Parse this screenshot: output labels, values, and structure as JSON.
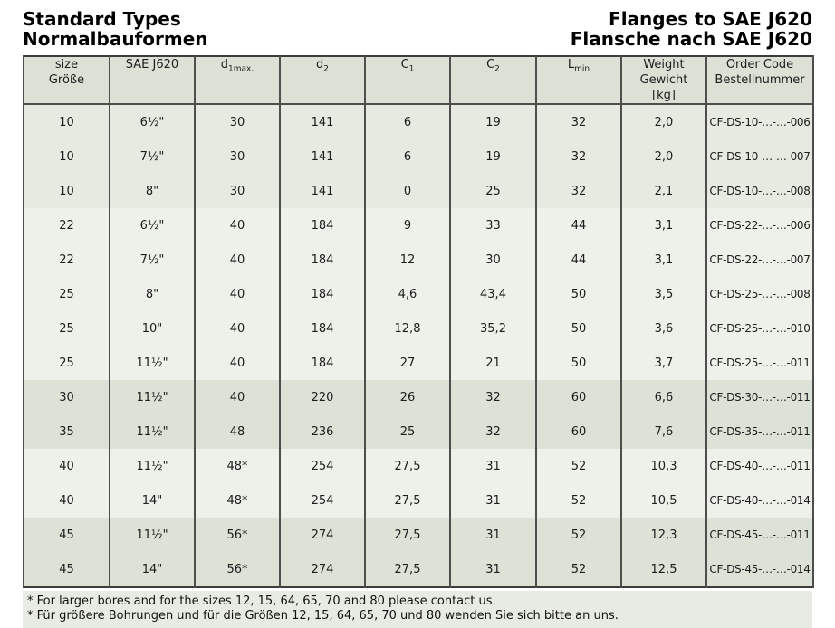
{
  "colors": {
    "header_bg": "#dce0d5",
    "row_shade_medium": "#e6eae1",
    "row_shade_light": "#eef1ea",
    "row_shade_dark": "#dde2d7",
    "footnote_bg": "#e8ebe3",
    "border_outer": "#3c3c3c",
    "border_inner": "#4e4e4e",
    "text": "#1c1c1c"
  },
  "header": {
    "left": [
      "Standard Types",
      "Normalbauformen"
    ],
    "right": [
      "Flanges to SAE J620",
      "Flansche nach SAE J620"
    ]
  },
  "table": {
    "columns": [
      {
        "key": "size",
        "lines": [
          "size",
          "Größe"
        ]
      },
      {
        "key": "sae",
        "lines": [
          "SAE J620"
        ]
      },
      {
        "key": "d1max",
        "base": "d",
        "sub": "1max."
      },
      {
        "key": "d2",
        "base": "d",
        "sub": "2"
      },
      {
        "key": "c1",
        "base": "C",
        "sub": "1"
      },
      {
        "key": "c2",
        "base": "C",
        "sub": "2"
      },
      {
        "key": "lmin",
        "base": "L",
        "sub": "min"
      },
      {
        "key": "weight",
        "lines": [
          "Weight",
          "Gewicht",
          "[kg]"
        ]
      },
      {
        "key": "order",
        "lines": [
          "Order Code",
          "Bestellnummer"
        ]
      }
    ],
    "rows": [
      {
        "size": "10",
        "sae": "6½\"",
        "d1max": "30",
        "d2": "141",
        "c1": "6",
        "c2": "19",
        "lmin": "32",
        "weight": "2,0",
        "order": "CF-DS-10-…-…-006",
        "shade": "m"
      },
      {
        "size": "10",
        "sae": "7½\"",
        "d1max": "30",
        "d2": "141",
        "c1": "6",
        "c2": "19",
        "lmin": "32",
        "weight": "2,0",
        "order": "CF-DS-10-…-…-007",
        "shade": "m"
      },
      {
        "size": "10",
        "sae": "8\"",
        "d1max": "30",
        "d2": "141",
        "c1": "0",
        "c2": "25",
        "lmin": "32",
        "weight": "2,1",
        "order": "CF-DS-10-…-…-008",
        "shade": "m"
      },
      {
        "size": "22",
        "sae": "6½\"",
        "d1max": "40",
        "d2": "184",
        "c1": "9",
        "c2": "33",
        "lmin": "44",
        "weight": "3,1",
        "order": "CF-DS-22-…-…-006",
        "shade": "l"
      },
      {
        "size": "22",
        "sae": "7½\"",
        "d1max": "40",
        "d2": "184",
        "c1": "12",
        "c2": "30",
        "lmin": "44",
        "weight": "3,1",
        "order": "CF-DS-22-…-…-007",
        "shade": "l"
      },
      {
        "size": "25",
        "sae": "8\"",
        "d1max": "40",
        "d2": "184",
        "c1": "4,6",
        "c2": "43,4",
        "lmin": "50",
        "weight": "3,5",
        "order": "CF-DS-25-…-…-008",
        "shade": "l"
      },
      {
        "size": "25",
        "sae": "10\"",
        "d1max": "40",
        "d2": "184",
        "c1": "12,8",
        "c2": "35,2",
        "lmin": "50",
        "weight": "3,6",
        "order": "CF-DS-25-…-…-010",
        "shade": "l"
      },
      {
        "size": "25",
        "sae": "11½\"",
        "d1max": "40",
        "d2": "184",
        "c1": "27",
        "c2": "21",
        "lmin": "50",
        "weight": "3,7",
        "order": "CF-DS-25-…-…-011",
        "shade": "l"
      },
      {
        "size": "30",
        "sae": "11½\"",
        "d1max": "40",
        "d2": "220",
        "c1": "26",
        "c2": "32",
        "lmin": "60",
        "weight": "6,6",
        "order": "CF-DS-30-…-…-011",
        "shade": "d"
      },
      {
        "size": "35",
        "sae": "11½\"",
        "d1max": "48",
        "d2": "236",
        "c1": "25",
        "c2": "32",
        "lmin": "60",
        "weight": "7,6",
        "order": "CF-DS-35-…-…-011",
        "shade": "d"
      },
      {
        "size": "40",
        "sae": "11½\"",
        "d1max": "48*",
        "d2": "254",
        "c1": "27,5",
        "c2": "31",
        "lmin": "52",
        "weight": "10,3",
        "order": "CF-DS-40-…-…-011",
        "shade": "l"
      },
      {
        "size": "40",
        "sae": "14\"",
        "d1max": "48*",
        "d2": "254",
        "c1": "27,5",
        "c2": "31",
        "lmin": "52",
        "weight": "10,5",
        "order": "CF-DS-40-…-…-014",
        "shade": "l"
      },
      {
        "size": "45",
        "sae": "11½\"",
        "d1max": "56*",
        "d2": "274",
        "c1": "27,5",
        "c2": "31",
        "lmin": "52",
        "weight": "12,3",
        "order": "CF-DS-45-…-…-011",
        "shade": "d"
      },
      {
        "size": "45",
        "sae": "14\"",
        "d1max": "56*",
        "d2": "274",
        "c1": "27,5",
        "c2": "31",
        "lmin": "52",
        "weight": "12,5",
        "order": "CF-DS-45-…-…-014",
        "shade": "d"
      }
    ]
  },
  "footnotes": [
    "* For larger bores and for the sizes 12, 15, 64, 65, 70 and 80 please contact us.",
    "* Für größere Bohrungen und für die Größen 12, 15, 64, 65, 70 und 80 wenden Sie sich bitte an uns."
  ]
}
